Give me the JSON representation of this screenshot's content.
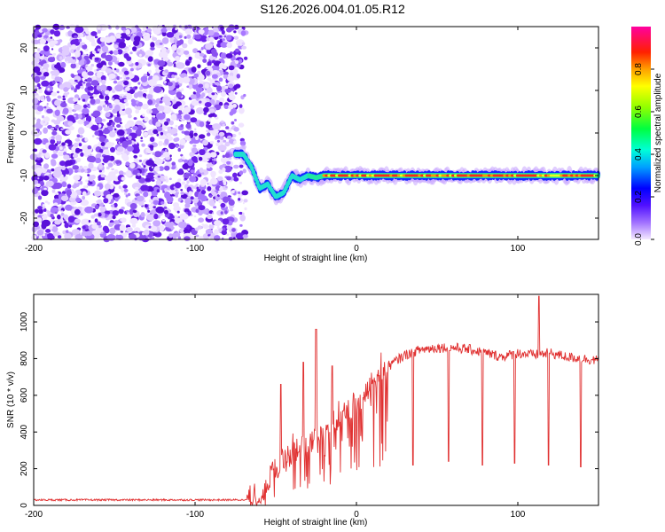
{
  "title": "S126.2026.004.01.05.R12",
  "chart_data": [
    {
      "type": "heatmap",
      "name": "spectrogram",
      "xlabel": "Height of straight line (km)",
      "ylabel": "Frequency (Hz)",
      "xlim": [
        -200,
        150
      ],
      "ylim": [
        -25,
        25
      ],
      "xticks": [
        -200,
        -100,
        0,
        100
      ],
      "xtick_labels": [
        "-200",
        "-100",
        "0",
        "100"
      ],
      "yticks": [
        -20,
        -10,
        0,
        10,
        20
      ],
      "ytick_labels": [
        "-20",
        "-10",
        "0",
        "10",
        "20"
      ],
      "noise_region_x": [
        -200,
        -73
      ],
      "signal_track": {
        "x": [
          -75,
          -70,
          -65,
          -60,
          -55,
          -50,
          -45,
          -40,
          -35,
          -30,
          -25,
          -20,
          -10,
          0,
          20,
          40,
          60,
          80,
          100,
          120,
          150
        ],
        "y": [
          -5,
          -5,
          -8,
          -13,
          -12,
          -15,
          -14,
          -10,
          -11,
          -10,
          -10.5,
          -10,
          -10,
          -10,
          -10,
          -10,
          -10,
          -10,
          -10,
          -10,
          -10
        ]
      },
      "colorbar": {
        "label": "Normalized spectral amplitude",
        "range": [
          0,
          1
        ],
        "ticks": [
          0,
          0.2,
          0.4,
          0.6,
          0.8
        ],
        "tick_labels": [
          "0.0",
          "0.2",
          "0.4",
          "0.6",
          "0.8"
        ]
      }
    },
    {
      "type": "line",
      "name": "snr",
      "xlabel": "Height of straight line (km)",
      "ylabel": "SNR (10 * v/v)",
      "xlim": [
        -200,
        150
      ],
      "ylim": [
        0,
        1150
      ],
      "xticks": [
        -200,
        -100,
        0,
        100
      ],
      "xtick_labels": [
        "-200",
        "-100",
        "0",
        "100"
      ],
      "yticks": [
        0,
        200,
        400,
        600,
        800,
        1000
      ],
      "ytick_labels": [
        "0",
        "200",
        "400",
        "600",
        "800",
        "1000"
      ],
      "color": "#e03030",
      "envelope": {
        "x": [
          -200,
          -70,
          -60,
          -50,
          -40,
          -30,
          -20,
          -10,
          0,
          10,
          20,
          30,
          40,
          50,
          60,
          70,
          80,
          90,
          100,
          110,
          120,
          130,
          140,
          150
        ],
        "y": [
          30,
          30,
          60,
          200,
          280,
          330,
          420,
          480,
          560,
          660,
          760,
          820,
          850,
          860,
          860,
          850,
          830,
          810,
          830,
          820,
          830,
          810,
          800,
          790
        ]
      },
      "spikes": [
        {
          "x": -47,
          "y": 660
        },
        {
          "x": -33,
          "y": 780
        },
        {
          "x": -25,
          "y": 960
        },
        {
          "x": -15,
          "y": 760
        },
        {
          "x": 35,
          "y": 220
        },
        {
          "x": 57,
          "y": 240
        },
        {
          "x": 78,
          "y": 220
        },
        {
          "x": 98,
          "y": 230
        },
        {
          "x": 113,
          "y": 1140
        },
        {
          "x": 119,
          "y": 220
        },
        {
          "x": 139,
          "y": 210
        }
      ]
    }
  ]
}
